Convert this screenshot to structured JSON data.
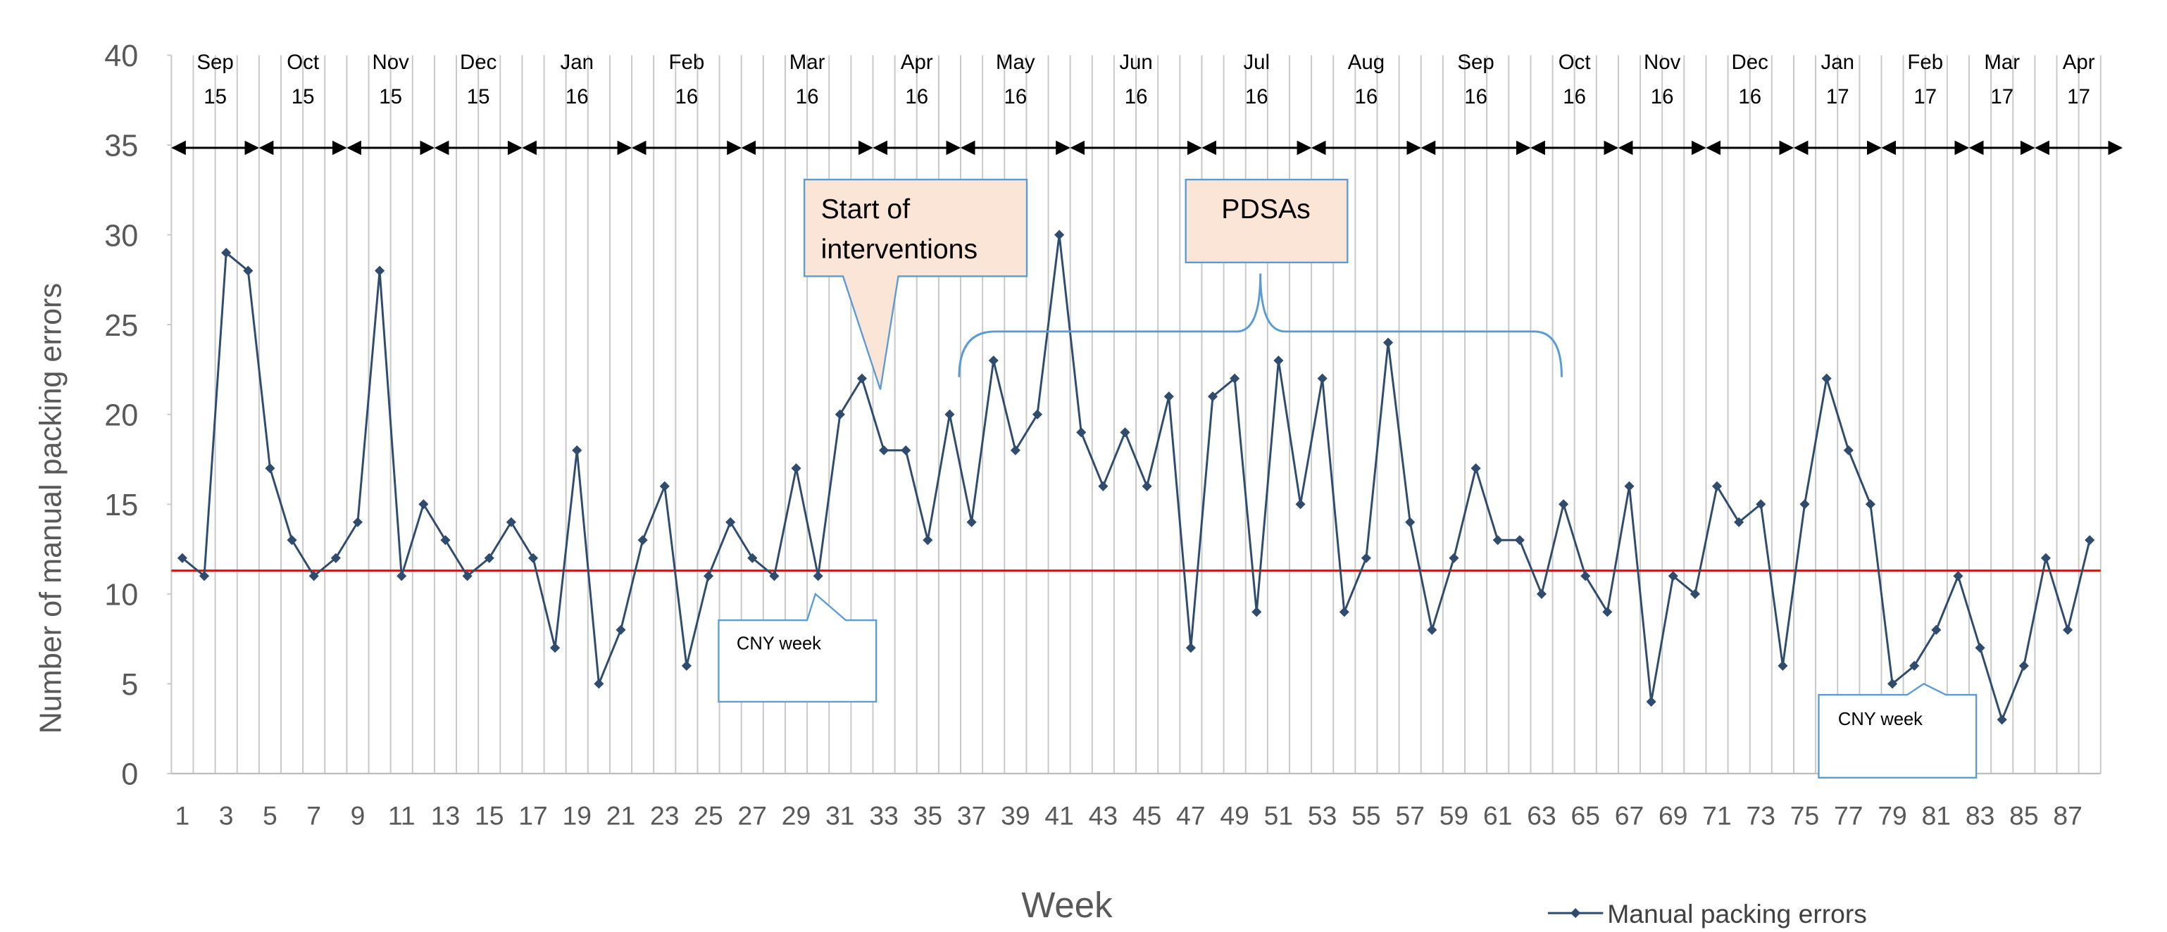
{
  "chart_data": {
    "type": "line",
    "x_label": "Week",
    "y_label": "Number of manual packing errors",
    "categories": [
      1,
      null,
      3,
      null,
      5,
      null,
      7,
      null,
      9,
      null,
      11,
      null,
      13,
      null,
      15,
      null,
      17,
      null,
      19,
      null,
      21,
      null,
      23,
      null,
      25,
      null,
      27,
      null,
      29,
      null,
      31,
      null,
      33,
      null,
      35,
      null,
      37,
      null,
      39,
      null,
      41,
      null,
      43,
      null,
      45,
      null,
      47,
      null,
      49,
      null,
      51,
      null,
      53,
      null,
      55,
      null,
      57,
      null,
      59,
      null,
      61,
      null,
      63,
      null,
      65,
      null,
      67,
      null,
      69,
      null,
      71,
      null,
      73,
      null,
      75,
      null,
      77,
      null,
      79,
      null,
      81,
      null,
      83,
      null,
      85,
      null,
      87,
      null
    ],
    "series": [
      {
        "name": "Manual packing errors",
        "color": "#2f4b6e",
        "values": [
          12,
          11,
          29,
          28,
          17,
          13,
          11,
          12,
          14,
          28,
          11,
          15,
          13,
          11,
          12,
          14,
          12,
          7,
          18,
          5,
          8,
          13,
          16,
          6,
          11,
          14,
          12,
          11,
          17,
          11,
          20,
          22,
          18,
          18,
          13,
          20,
          14,
          23,
          18,
          20,
          30,
          19,
          16,
          19,
          16,
          21,
          7,
          21,
          22,
          9,
          23,
          15,
          22,
          9,
          12,
          24,
          14,
          8,
          12,
          17,
          13,
          13,
          10,
          15,
          11,
          9,
          16,
          4,
          11,
          10,
          16,
          14,
          15,
          6,
          15,
          22,
          18,
          15,
          5,
          6,
          8,
          11,
          7,
          3,
          6,
          12,
          8,
          13
        ]
      }
    ],
    "ylim": [
      0,
      40
    ],
    "yticks": [
      0,
      5,
      10,
      15,
      20,
      25,
      30,
      35,
      40
    ],
    "hline": {
      "value": 11.3,
      "color": "#ff0000"
    },
    "periods": [
      {
        "month": "Sep",
        "year": "15",
        "start": 0.5,
        "end": 4.5
      },
      {
        "month": "Oct",
        "year": "15",
        "start": 4.5,
        "end": 8.5
      },
      {
        "month": "Nov",
        "year": "15",
        "start": 8.5,
        "end": 12.5
      },
      {
        "month": "Dec",
        "year": "15",
        "start": 12.5,
        "end": 16.5
      },
      {
        "month": "Jan",
        "year": "16",
        "start": 16.5,
        "end": 21.5
      },
      {
        "month": "Feb",
        "year": "16",
        "start": 21.5,
        "end": 26.5
      },
      {
        "month": "Mar",
        "year": "16",
        "start": 26.5,
        "end": 32.5
      },
      {
        "month": "Apr",
        "year": "16",
        "start": 32.5,
        "end": 36.5
      },
      {
        "month": "May",
        "year": "16",
        "start": 36.5,
        "end": 41.5
      },
      {
        "month": "Jun",
        "year": "16",
        "start": 41.5,
        "end": 47.5
      },
      {
        "month": "Jul",
        "year": "16",
        "start": 47.5,
        "end": 52.5
      },
      {
        "month": "Aug",
        "year": "16",
        "start": 52.5,
        "end": 57.5
      },
      {
        "month": "Sep",
        "year": "16",
        "start": 57.5,
        "end": 62.5
      },
      {
        "month": "Oct",
        "year": "16",
        "start": 62.5,
        "end": 66.5
      },
      {
        "month": "Nov",
        "year": "16",
        "start": 66.5,
        "end": 70.5
      },
      {
        "month": "Dec",
        "year": "16",
        "start": 70.5,
        "end": 74.5
      },
      {
        "month": "Jan",
        "year": "17",
        "start": 74.5,
        "end": 78.5
      },
      {
        "month": "Feb",
        "year": "17",
        "start": 78.5,
        "end": 82.5
      },
      {
        "month": "Mar",
        "year": "17",
        "start": 82.5,
        "end": 85.5
      },
      {
        "month": "Apr",
        "year": "17",
        "start": 85.5,
        "end": 89.5
      }
    ],
    "annotations": {
      "interventions": [
        "Start of",
        "interventions"
      ],
      "pdsas": "PDSAs",
      "cny_1": "CNY week",
      "cny_2": "CNY week"
    },
    "legend": "bottom-right"
  }
}
